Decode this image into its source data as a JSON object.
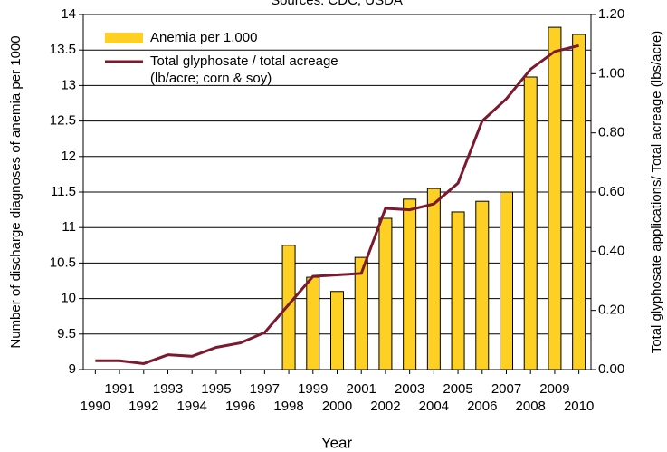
{
  "chart_data": {
    "type": "bar_line",
    "subtitle": "Sources: CDC, USDA",
    "x_label": "Year",
    "y_label": "Number of discharge diagnoses of anemia per 1000",
    "y2_label": "Total glyphosate applications/ Total acreage (lbs/acre)",
    "categories": [
      "1990",
      "1991",
      "1992",
      "1993",
      "1994",
      "1995",
      "1996",
      "1997",
      "1998",
      "1999",
      "2000",
      "2001",
      "2002",
      "2003",
      "2004",
      "2005",
      "2006",
      "2007",
      "2008",
      "2009",
      "2010"
    ],
    "series": [
      {
        "name": "Anemia per 1,000",
        "color": "#fdd023",
        "type": "bar",
        "values": [
          null,
          null,
          null,
          null,
          null,
          null,
          null,
          null,
          10.75,
          10.3,
          10.1,
          10.58,
          11.13,
          11.4,
          11.55,
          11.22,
          11.37,
          11.5,
          13.12,
          13.82,
          13.72
        ]
      },
      {
        "name": "Total glyphosate / total acreage",
        "note": "(lb/acre; corn & soy)",
        "color": "#7b1a2e",
        "type": "line",
        "axis": "y2",
        "values": [
          0.03,
          0.03,
          0.02,
          0.05,
          0.045,
          0.075,
          0.09,
          0.125,
          0.22,
          0.315,
          0.32,
          0.325,
          0.545,
          0.54,
          0.56,
          0.63,
          0.84,
          0.915,
          1.015,
          1.075,
          1.095
        ]
      }
    ],
    "ylim": [
      9,
      14
    ],
    "yticks": [
      9,
      9.5,
      10,
      10.5,
      11,
      11.5,
      12,
      12.5,
      13,
      13.5,
      14
    ],
    "y2lim": [
      0,
      1.2
    ],
    "y2ticks": [
      {
        "value": 0,
        "label": "0.00"
      },
      {
        "value": 0.2,
        "label": "0.20"
      },
      {
        "value": 0.4,
        "label": "0.40"
      },
      {
        "value": 0.6,
        "label": "0.60"
      },
      {
        "value": 0.8,
        "label": "0.80"
      },
      {
        "value": 1.0,
        "label": "1.00"
      },
      {
        "value": 1.2,
        "label": "1.20"
      }
    ],
    "grid": true,
    "legend": "top-left"
  }
}
